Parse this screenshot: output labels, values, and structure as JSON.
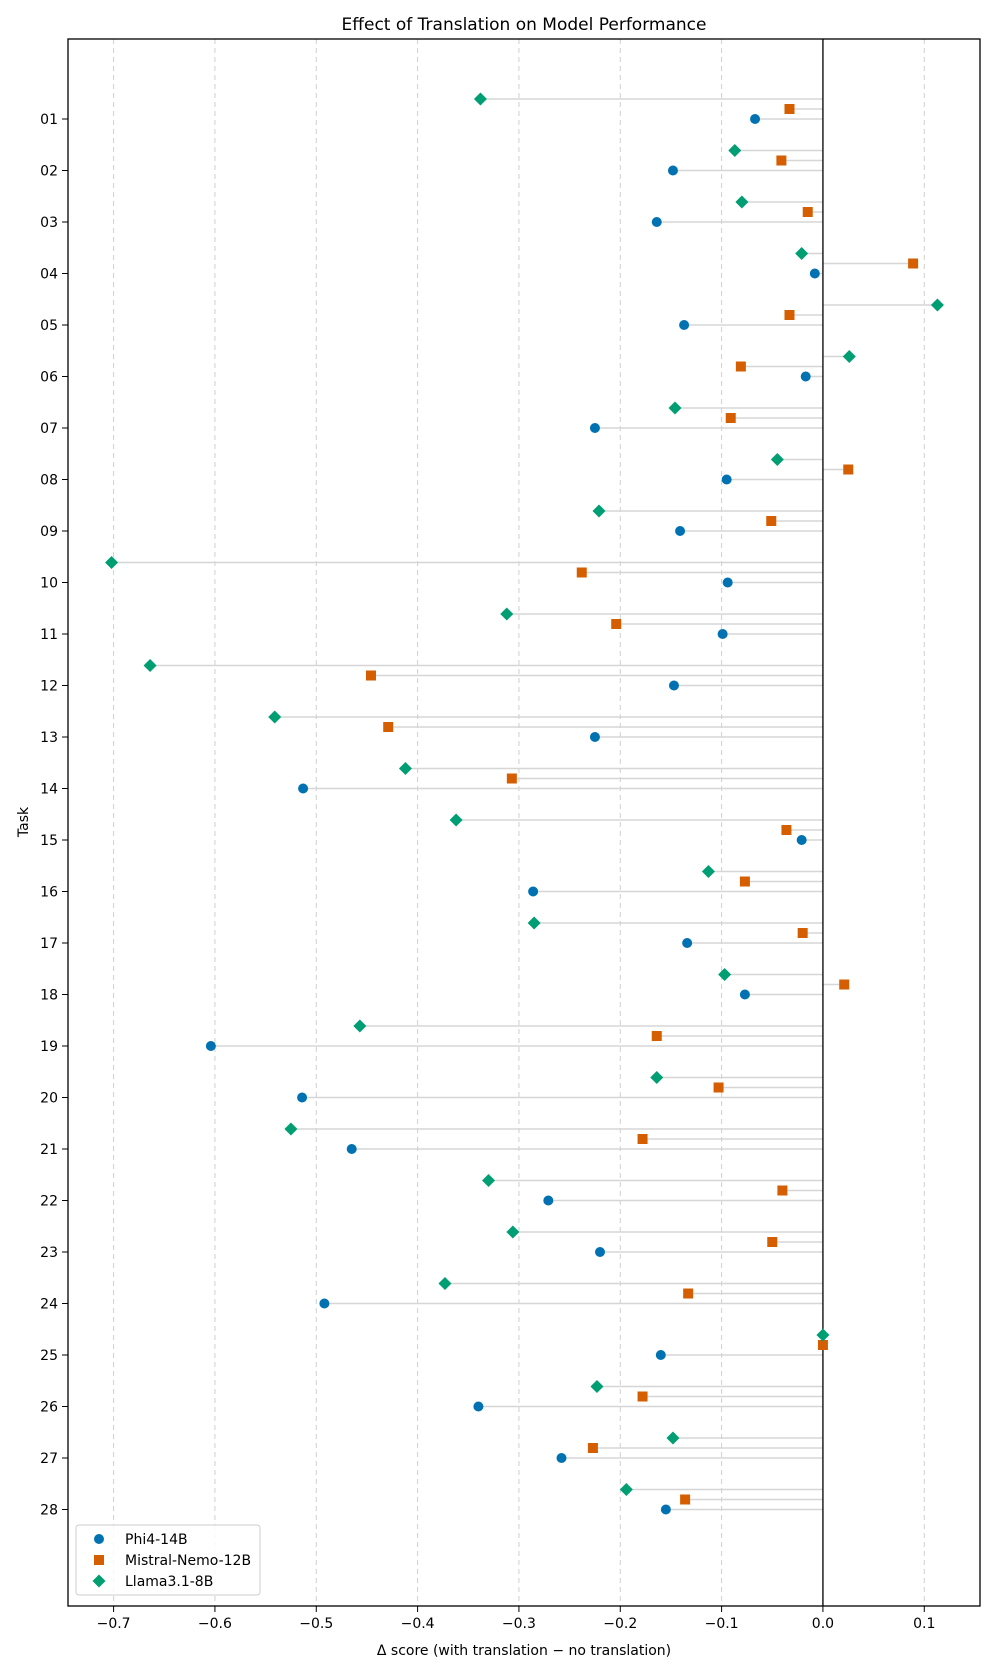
{
  "chart_data": {
    "type": "scatter",
    "title": "Effect of Translation on Model Performance",
    "xlabel": "Δ score (with translation − no translation)",
    "ylabel": "Task",
    "xlim": [
      -0.745,
      0.155
    ],
    "xticks": [
      -0.7,
      -0.6,
      -0.5,
      -0.4,
      -0.3,
      -0.2,
      -0.1,
      0.0,
      0.1
    ],
    "xtick_labels": [
      "−0.7",
      "−0.6",
      "−0.5",
      "−0.4",
      "−0.3",
      "−0.2",
      "−0.1",
      "0.0",
      "0.1"
    ],
    "grid": "x-dashed",
    "legend_loc": "lower-left",
    "categories": [
      "01",
      "02",
      "03",
      "04",
      "05",
      "06",
      "07",
      "08",
      "09",
      "10",
      "11",
      "12",
      "13",
      "14",
      "15",
      "16",
      "17",
      "18",
      "19",
      "20",
      "21",
      "22",
      "23",
      "24",
      "25",
      "26",
      "27",
      "28"
    ],
    "series": [
      {
        "name": "Phi4-14B",
        "color": "#0072b2",
        "marker": "circle",
        "values": [
          -0.067,
          -0.148,
          -0.164,
          -0.008,
          -0.137,
          -0.017,
          -0.225,
          -0.095,
          -0.141,
          -0.094,
          -0.099,
          -0.147,
          -0.225,
          -0.513,
          -0.021,
          -0.286,
          -0.134,
          -0.077,
          -0.604,
          -0.514,
          -0.465,
          -0.271,
          -0.22,
          -0.492,
          -0.16,
          -0.34,
          -0.258,
          -0.155
        ]
      },
      {
        "name": "Mistral-Nemo-12B",
        "color": "#d55e00",
        "marker": "square",
        "values": [
          -0.033,
          -0.041,
          -0.015,
          0.089,
          -0.033,
          -0.081,
          -0.091,
          0.025,
          -0.051,
          -0.238,
          -0.204,
          -0.446,
          -0.429,
          -0.307,
          -0.036,
          -0.077,
          -0.02,
          0.021,
          -0.164,
          -0.103,
          -0.178,
          -0.04,
          -0.05,
          -0.133,
          0.0,
          -0.178,
          -0.227,
          -0.136
        ]
      },
      {
        "name": "Llama3.1-8B",
        "color": "#009e73",
        "marker": "diamond",
        "values": [
          -0.338,
          -0.087,
          -0.08,
          -0.021,
          0.113,
          0.026,
          -0.146,
          -0.045,
          -0.221,
          -0.702,
          -0.312,
          -0.664,
          -0.541,
          -0.412,
          -0.362,
          -0.113,
          -0.285,
          -0.097,
          -0.457,
          -0.164,
          -0.525,
          -0.33,
          -0.306,
          -0.373,
          0.0,
          -0.223,
          -0.148,
          -0.194
        ]
      }
    ]
  }
}
